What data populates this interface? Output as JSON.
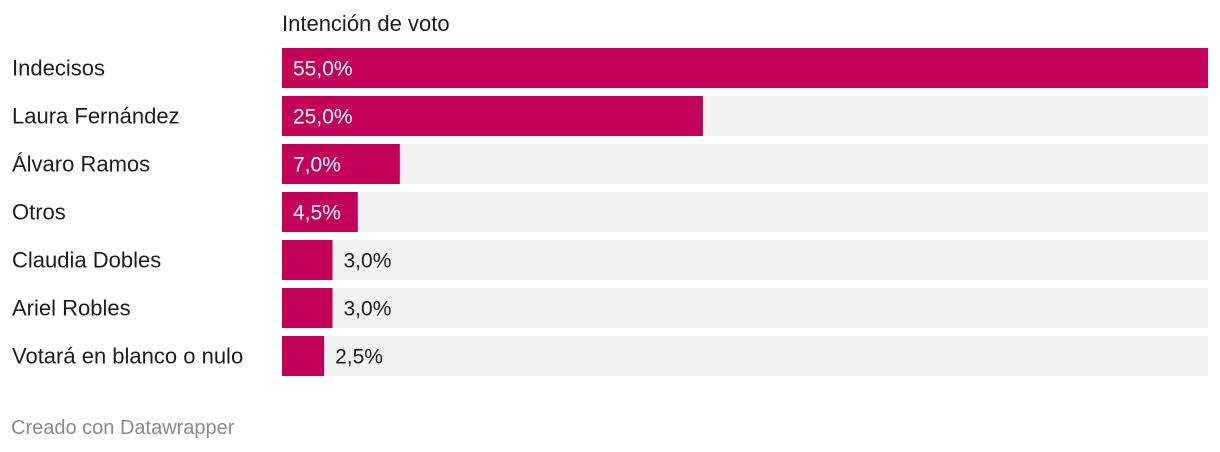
{
  "chart_data": {
    "type": "bar",
    "orientation": "horizontal",
    "title": "Intención de voto",
    "categories": [
      "Indecisos",
      "Laura Fernández",
      "Álvaro Ramos",
      "Otros",
      "Claudia Dobles",
      "Ariel Robles",
      "Votará en blanco o nulo"
    ],
    "values": [
      55.0,
      25.0,
      7.0,
      4.5,
      3.0,
      3.0,
      2.5
    ],
    "value_labels": [
      "55,0%",
      "25,0%",
      "7,0%",
      "4,5%",
      "3,0%",
      "3,0%",
      "2,5%"
    ],
    "xlim": [
      0,
      55
    ],
    "unit": "%",
    "bar_color": "#c2005a",
    "track_color": "#f2f1f1",
    "label_inside_color": "#ffffff",
    "label_outside_color": "#1d1d1d"
  },
  "footer": {
    "credit": "Creado con Datawrapper"
  }
}
